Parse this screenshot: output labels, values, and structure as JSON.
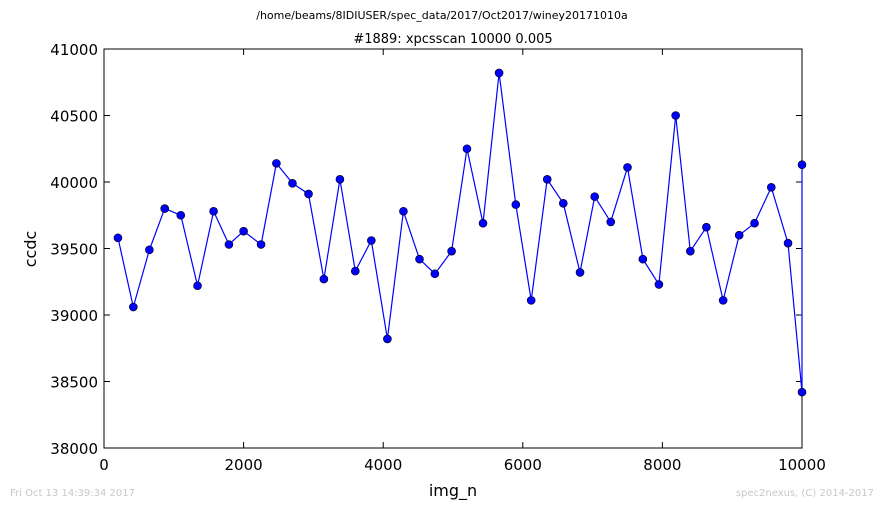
{
  "chart_data": {
    "type": "line",
    "suptitle": "/home/beams/8IDIUSER/spec_data/2017/Oct2017/winey20171010a",
    "title": "#1889: xpcsscan 10000 0.005",
    "xlabel": "img_n",
    "ylabel": "ccdc",
    "xlim": [
      0,
      10000
    ],
    "ylim": [
      38000,
      41000
    ],
    "xticks": [
      "0",
      "2000",
      "4000",
      "6000",
      "8000",
      "10000"
    ],
    "yticks": [
      "38000",
      "38500",
      "39000",
      "39500",
      "40000",
      "40500",
      "41000"
    ],
    "grid": false,
    "line_color": "#0000ff",
    "marker": "circle",
    "x": [
      200,
      420,
      650,
      870,
      1100,
      1340,
      1570,
      1790,
      2000,
      2250,
      2470,
      2700,
      2930,
      3150,
      3380,
      3600,
      3830,
      4060,
      4290,
      4520,
      4740,
      4980,
      5200,
      5430,
      5660,
      5900,
      6120,
      6350,
      6580,
      6820,
      7030,
      7260,
      7500,
      7720,
      7950,
      8190,
      8400,
      8630,
      8870,
      9100,
      9320,
      9560,
      9800,
      10000,
      10000
    ],
    "y": [
      39580,
      39060,
      39490,
      39800,
      39750,
      39220,
      39780,
      39530,
      39630,
      39530,
      40140,
      39990,
      39910,
      39270,
      40020,
      39330,
      39560,
      38820,
      39780,
      39420,
      39310,
      39480,
      40250,
      39690,
      40820,
      39830,
      39110,
      40020,
      39840,
      39320,
      39890,
      39700,
      40110,
      39420,
      39230,
      40500,
      39480,
      39660,
      39110,
      39600,
      39690,
      39960,
      39540,
      38420,
      40130
    ]
  },
  "footer": {
    "left": "Fri Oct 13 14:39:34 2017",
    "right": "spec2nexus, (C) 2014-2017"
  }
}
